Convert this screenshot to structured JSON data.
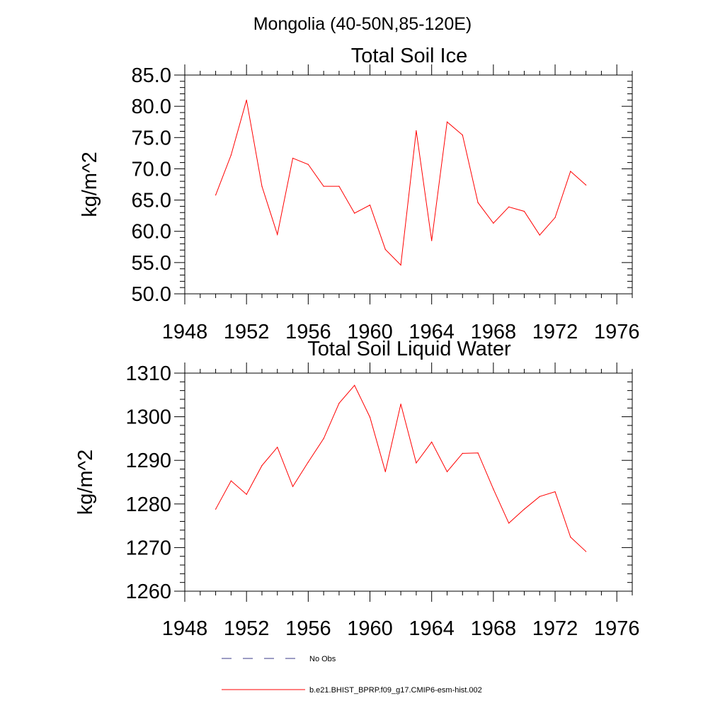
{
  "figure": {
    "suptitle": "Mongolia (40-50N,85-120E)"
  },
  "legend": [
    {
      "label": "No Obs",
      "style": "dashed",
      "color": "#3a3a8a"
    },
    {
      "label": "b.e21.BHIST_BPRP.f09_g17.CMIP6-esm-hist.002",
      "style": "solid",
      "color": "#ff0000"
    }
  ],
  "chart_data": [
    {
      "type": "line",
      "title": "Total Soil Ice",
      "ylabel": "kg/m^2",
      "xlabel": "",
      "xlim": [
        1948,
        1977
      ],
      "ylim": [
        50,
        85
      ],
      "xticks": [
        1948,
        1952,
        1956,
        1960,
        1964,
        1968,
        1972,
        1976
      ],
      "xtick_labels": [
        "1948",
        "1952",
        "1956",
        "1960",
        "1964",
        "1968",
        "1972",
        "1976"
      ],
      "yticks": [
        50,
        55,
        60,
        65,
        70,
        75,
        80,
        85
      ],
      "ytick_labels": [
        "50.0",
        "55.0",
        "60.0",
        "65.0",
        "70.0",
        "75.0",
        "80.0",
        "85.0"
      ],
      "series": [
        {
          "name": "b.e21.BHIST_BPRP.f09_g17.CMIP6-esm-hist.002",
          "color": "#ff0000",
          "x": [
            1950,
            1951,
            1952,
            1953,
            1954,
            1955,
            1956,
            1957,
            1958,
            1959,
            1960,
            1961,
            1962,
            1963,
            1964,
            1965,
            1966,
            1967,
            1968,
            1969,
            1970,
            1971,
            1972,
            1973,
            1974
          ],
          "y": [
            65.8,
            72.2,
            81.0,
            67.2,
            59.5,
            71.7,
            70.7,
            67.2,
            67.2,
            62.9,
            64.2,
            57.1,
            54.6,
            76.1,
            58.5,
            77.5,
            75.4,
            64.6,
            61.3,
            63.9,
            63.2,
            59.4,
            62.2,
            69.6,
            67.4
          ]
        }
      ]
    },
    {
      "type": "line",
      "title": "Total Soil Liquid Water",
      "ylabel": "kg/m^2",
      "xlabel": "",
      "xlim": [
        1948,
        1977
      ],
      "ylim": [
        1260,
        1310
      ],
      "xticks": [
        1948,
        1952,
        1956,
        1960,
        1964,
        1968,
        1972,
        1976
      ],
      "xtick_labels": [
        "1948",
        "1952",
        "1956",
        "1960",
        "1964",
        "1968",
        "1972",
        "1976"
      ],
      "yticks": [
        1260,
        1270,
        1280,
        1290,
        1300,
        1310
      ],
      "ytick_labels": [
        "1260",
        "1270",
        "1280",
        "1290",
        "1300",
        "1310"
      ],
      "series": [
        {
          "name": "b.e21.BHIST_BPRP.f09_g17.CMIP6-esm-hist.002",
          "color": "#ff0000",
          "x": [
            1950,
            1951,
            1952,
            1953,
            1954,
            1955,
            1956,
            1957,
            1958,
            1959,
            1960,
            1961,
            1962,
            1963,
            1964,
            1965,
            1966,
            1967,
            1968,
            1969,
            1970,
            1971,
            1972,
            1973,
            1974
          ],
          "y": [
            1278.8,
            1285.3,
            1282.2,
            1288.8,
            1293.0,
            1284.0,
            1289.6,
            1295.0,
            1303.1,
            1307.2,
            1299.9,
            1287.4,
            1302.9,
            1289.4,
            1294.2,
            1287.4,
            1291.6,
            1291.7,
            1283.4,
            1275.6,
            1278.8,
            1281.7,
            1282.8,
            1272.4,
            1269.1
          ]
        }
      ]
    }
  ]
}
